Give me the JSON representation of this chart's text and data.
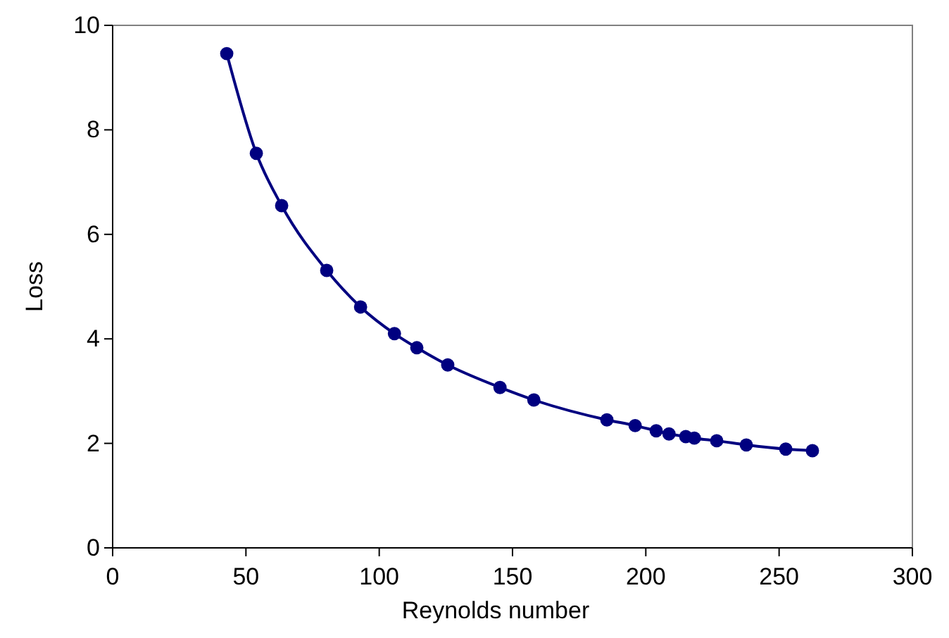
{
  "chart_data": {
    "type": "line",
    "xlabel": "Reynolds number",
    "ylabel": "Loss",
    "x": [
      42.8,
      53.9,
      63.4,
      80.3,
      93.0,
      105.7,
      114.1,
      125.7,
      145.3,
      158.0,
      185.4,
      196.0,
      203.9,
      208.7,
      215.0,
      218.2,
      226.6,
      237.7,
      252.5,
      262.5
    ],
    "series": [
      {
        "color": "#000080",
        "values": [
          9.46,
          7.55,
          6.55,
          5.31,
          4.61,
          4.1,
          3.83,
          3.5,
          3.07,
          2.83,
          2.45,
          2.34,
          2.24,
          2.18,
          2.13,
          2.1,
          2.05,
          1.97,
          1.89,
          1.86
        ]
      }
    ],
    "xlim": [
      0,
      300
    ],
    "xticks": [
      0,
      50,
      100,
      150,
      200,
      250,
      300
    ],
    "ylim": [
      0,
      10
    ],
    "yticks": [
      0,
      2,
      4,
      6,
      8,
      10
    ],
    "marker": "circle",
    "line_style": "solid"
  }
}
